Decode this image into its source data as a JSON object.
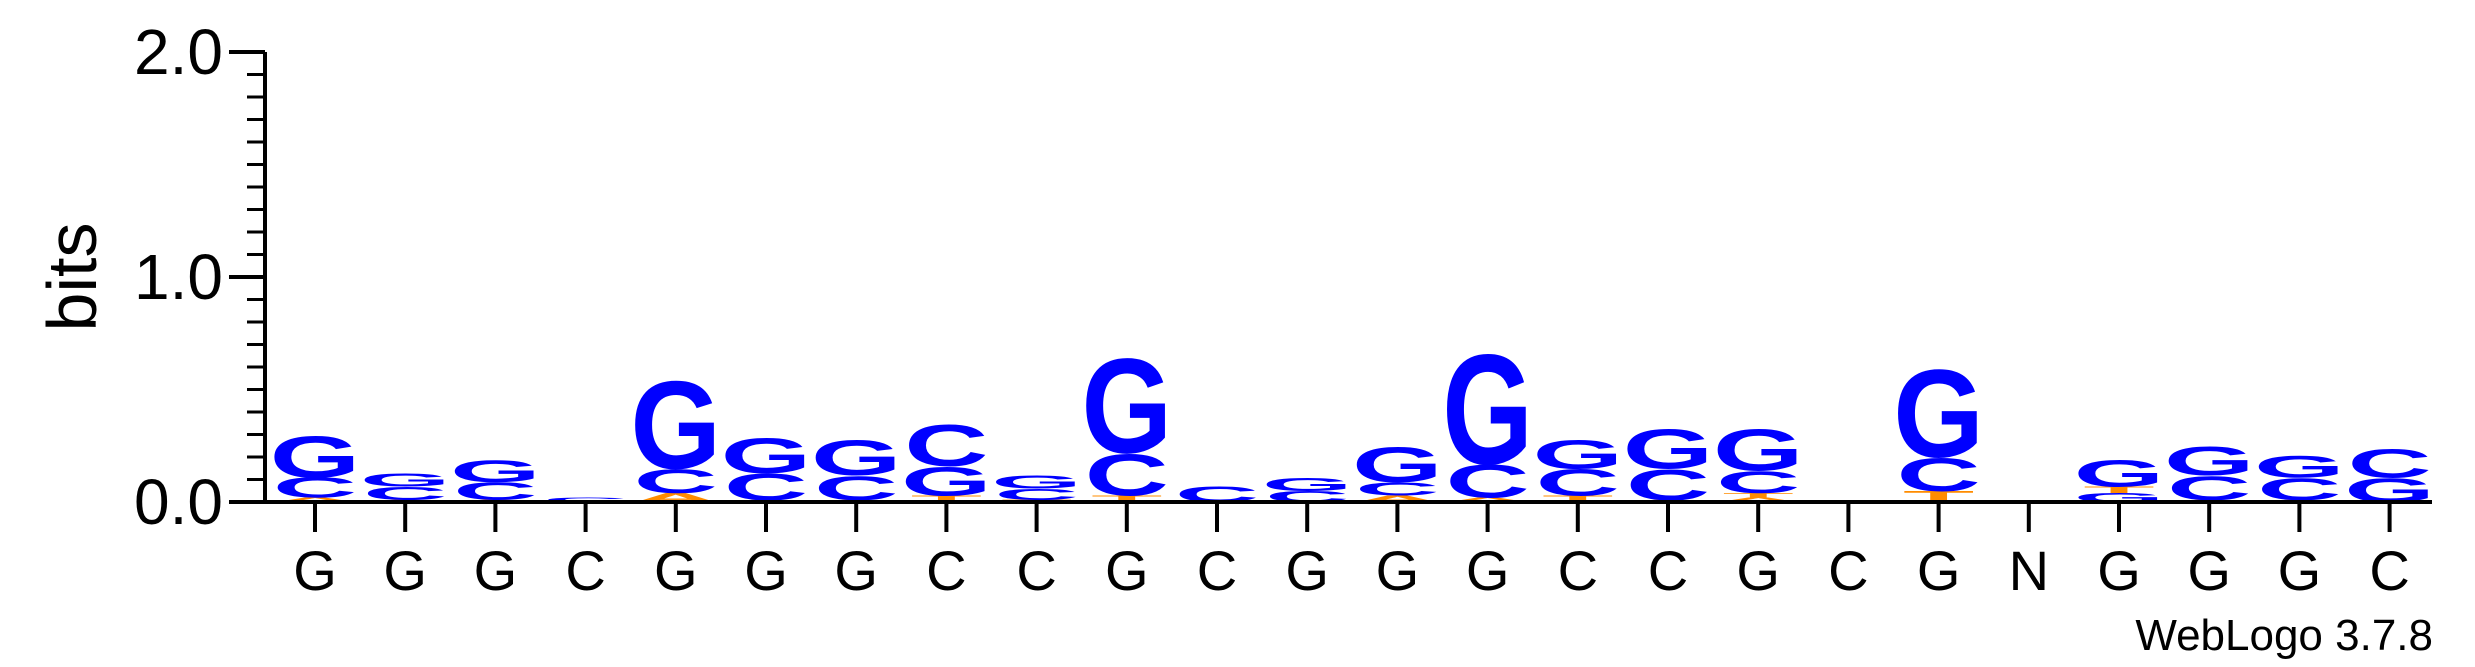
{
  "chart_data": {
    "type": "sequence-logo",
    "ylabel": "bits",
    "ylim": [
      0,
      2.0
    ],
    "yticks": [
      {
        "value": 0.0,
        "label": "0.0"
      },
      {
        "value": 1.0,
        "label": "1.0"
      },
      {
        "value": 2.0,
        "label": "2.0"
      }
    ],
    "minor_tick_step": 0.1,
    "xticks": [
      "G",
      "G",
      "G",
      "C",
      "G",
      "G",
      "G",
      "C",
      "C",
      "G",
      "C",
      "G",
      "G",
      "G",
      "C",
      "C",
      "G",
      "C",
      "G",
      "N",
      "G",
      "G",
      "G",
      "C"
    ],
    "colors": {
      "G": "#0000ff",
      "C": "#0000ff",
      "A": "#ff8c00",
      "T": "#ff8c00",
      "axis": "#000000"
    },
    "positions": [
      [
        {
          "letter": "A",
          "bits": 0.02
        },
        {
          "letter": "C",
          "bits": 0.09
        },
        {
          "letter": "G",
          "bits": 0.19
        }
      ],
      [
        {
          "letter": "A",
          "bits": 0.01
        },
        {
          "letter": "C",
          "bits": 0.06
        },
        {
          "letter": "G",
          "bits": 0.06
        }
      ],
      [
        {
          "letter": "A",
          "bits": 0.01
        },
        {
          "letter": "C",
          "bits": 0.08
        },
        {
          "letter": "G",
          "bits": 0.1
        }
      ],
      [
        {
          "letter": "C",
          "bits": 0.02
        }
      ],
      [
        {
          "letter": "A",
          "bits": 0.04
        },
        {
          "letter": "C",
          "bits": 0.11
        },
        {
          "letter": "G",
          "bits": 0.4
        }
      ],
      [
        {
          "letter": "A",
          "bits": 0.01
        },
        {
          "letter": "C",
          "bits": 0.12
        },
        {
          "letter": "G",
          "bits": 0.16
        }
      ],
      [
        {
          "letter": "A",
          "bits": 0.01
        },
        {
          "letter": "C",
          "bits": 0.11
        },
        {
          "letter": "G",
          "bits": 0.16
        }
      ],
      [
        {
          "letter": "T",
          "bits": 0.03
        },
        {
          "letter": "G",
          "bits": 0.13
        },
        {
          "letter": "C",
          "bits": 0.19
        }
      ],
      [
        {
          "letter": "T",
          "bits": 0.01
        },
        {
          "letter": "C",
          "bits": 0.05
        },
        {
          "letter": "G",
          "bits": 0.06
        }
      ],
      [
        {
          "letter": "T",
          "bits": 0.03
        },
        {
          "letter": "C",
          "bits": 0.19
        },
        {
          "letter": "G",
          "bits": 0.43
        }
      ],
      [
        {
          "letter": "C",
          "bits": 0.07
        }
      ],
      [
        {
          "letter": "C",
          "bits": 0.05
        },
        {
          "letter": "G",
          "bits": 0.06
        }
      ],
      [
        {
          "letter": "A",
          "bits": 0.03
        },
        {
          "letter": "C",
          "bits": 0.06
        },
        {
          "letter": "G",
          "bits": 0.16
        }
      ],
      [
        {
          "letter": "A",
          "bits": 0.02
        },
        {
          "letter": "C",
          "bits": 0.15
        },
        {
          "letter": "G",
          "bits": 0.5
        }
      ],
      [
        {
          "letter": "T",
          "bits": 0.03
        },
        {
          "letter": "C",
          "bits": 0.12
        },
        {
          "letter": "G",
          "bits": 0.13
        }
      ],
      [
        {
          "letter": "A",
          "bits": 0.01
        },
        {
          "letter": "C",
          "bits": 0.14
        },
        {
          "letter": "G",
          "bits": 0.18
        }
      ],
      [
        {
          "letter": "A",
          "bits": 0.02
        },
        {
          "letter": "T",
          "bits": 0.02
        },
        {
          "letter": "C",
          "bits": 0.1
        },
        {
          "letter": "G",
          "bits": 0.19
        }
      ],
      [],
      [
        {
          "letter": "T",
          "bits": 0.05
        },
        {
          "letter": "C",
          "bits": 0.15
        },
        {
          "letter": "G",
          "bits": 0.4
        }
      ],
      [],
      [
        {
          "letter": "G",
          "bits": 0.04
        },
        {
          "letter": "T",
          "bits": 0.03
        },
        {
          "letter": "G",
          "bits": 0.12
        }
      ],
      [
        {
          "letter": "A",
          "bits": 0.01
        },
        {
          "letter": "C",
          "bits": 0.11
        },
        {
          "letter": "G",
          "bits": 0.13
        }
      ],
      [
        {
          "letter": "A",
          "bits": 0.01
        },
        {
          "letter": "C",
          "bits": 0.1
        },
        {
          "letter": "G",
          "bits": 0.1
        }
      ],
      [
        {
          "letter": "G",
          "bits": 0.11
        },
        {
          "letter": "C",
          "bits": 0.13
        }
      ]
    ]
  },
  "footer": {
    "credit": "WebLogo 3.7.8"
  }
}
